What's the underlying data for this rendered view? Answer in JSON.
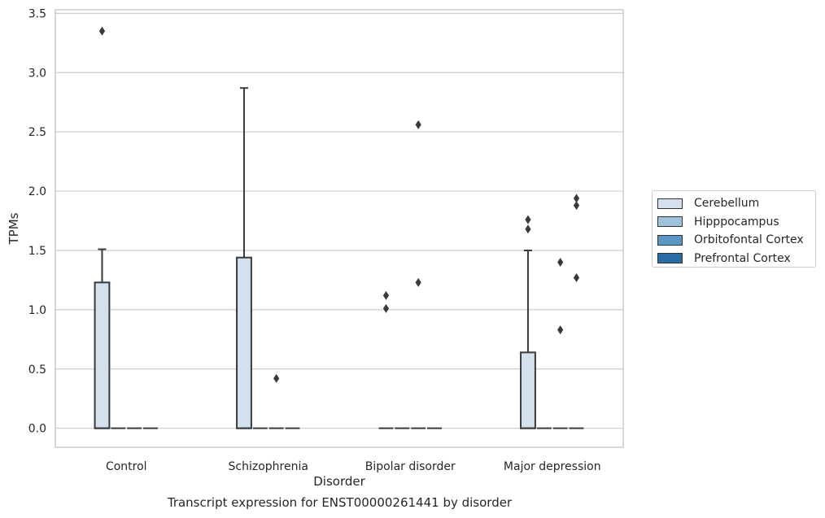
{
  "caption": "Transcript expression for ENST00000261441 by disorder",
  "chart_data": {
    "type": "box",
    "xlabel": "Disorder",
    "ylabel": "TPMs",
    "categories": [
      "Control",
      "Schizophrenia",
      "Bipolar disorder",
      "Major depression"
    ],
    "ylim": [
      -0.16,
      3.53
    ],
    "yticks": [
      "0.0",
      "0.5",
      "1.0",
      "1.5",
      "2.0",
      "2.5",
      "3.0",
      "3.5"
    ],
    "grid": true,
    "legend_position": "right",
    "series": [
      {
        "name": "Cerebellum",
        "color": "#d3e1ef",
        "boxes": [
          {
            "q1": 0.0,
            "median": 0.0,
            "q3": 1.23,
            "whisker_low": 0.0,
            "whisker_high": 1.51,
            "outliers": [
              3.35
            ]
          },
          {
            "q1": 0.0,
            "median": 0.0,
            "q3": 1.44,
            "whisker_low": 0.0,
            "whisker_high": 2.87,
            "outliers": []
          },
          {
            "q1": 0.0,
            "median": 0.0,
            "q3": 0.0,
            "whisker_low": 0.0,
            "whisker_high": 0.0,
            "outliers": [
              1.01,
              1.12
            ]
          },
          {
            "q1": 0.0,
            "median": 0.0,
            "q3": 0.64,
            "whisker_low": 0.0,
            "whisker_high": 1.5,
            "outliers": [
              1.68,
              1.76
            ]
          }
        ]
      },
      {
        "name": "Hipppocampus",
        "color": "#9dc3dc",
        "boxes": [
          {
            "q1": 0.0,
            "median": 0.0,
            "q3": 0.0,
            "whisker_low": 0.0,
            "whisker_high": 0.0,
            "outliers": []
          },
          {
            "q1": 0.0,
            "median": 0.0,
            "q3": 0.0,
            "whisker_low": 0.0,
            "whisker_high": 0.0,
            "outliers": []
          },
          {
            "q1": 0.0,
            "median": 0.0,
            "q3": 0.0,
            "whisker_low": 0.0,
            "whisker_high": 0.0,
            "outliers": []
          },
          {
            "q1": 0.0,
            "median": 0.0,
            "q3": 0.0,
            "whisker_low": 0.0,
            "whisker_high": 0.0,
            "outliers": []
          }
        ]
      },
      {
        "name": "Orbitofontal Cortex",
        "color": "#5a97c4",
        "boxes": [
          {
            "q1": 0.0,
            "median": 0.0,
            "q3": 0.0,
            "whisker_low": 0.0,
            "whisker_high": 0.0,
            "outliers": []
          },
          {
            "q1": 0.0,
            "median": 0.0,
            "q3": 0.0,
            "whisker_low": 0.0,
            "whisker_high": 0.0,
            "outliers": [
              0.42
            ]
          },
          {
            "q1": 0.0,
            "median": 0.0,
            "q3": 0.0,
            "whisker_low": 0.0,
            "whisker_high": 0.0,
            "outliers": [
              2.56,
              1.23
            ]
          },
          {
            "q1": 0.0,
            "median": 0.0,
            "q3": 0.0,
            "whisker_low": 0.0,
            "whisker_high": 0.0,
            "outliers": [
              1.4,
              0.83
            ]
          }
        ]
      },
      {
        "name": "Prefrontal Cortex",
        "color": "#2a6aa5",
        "boxes": [
          {
            "q1": 0.0,
            "median": 0.0,
            "q3": 0.0,
            "whisker_low": 0.0,
            "whisker_high": 0.0,
            "outliers": []
          },
          {
            "q1": 0.0,
            "median": 0.0,
            "q3": 0.0,
            "whisker_low": 0.0,
            "whisker_high": 0.0,
            "outliers": []
          },
          {
            "q1": 0.0,
            "median": 0.0,
            "q3": 0.0,
            "whisker_low": 0.0,
            "whisker_high": 0.0,
            "outliers": []
          },
          {
            "q1": 0.0,
            "median": 0.0,
            "q3": 0.0,
            "whisker_low": 0.0,
            "whisker_high": 0.0,
            "outliers": [
              1.94,
              1.88,
              1.27
            ]
          }
        ]
      }
    ]
  }
}
